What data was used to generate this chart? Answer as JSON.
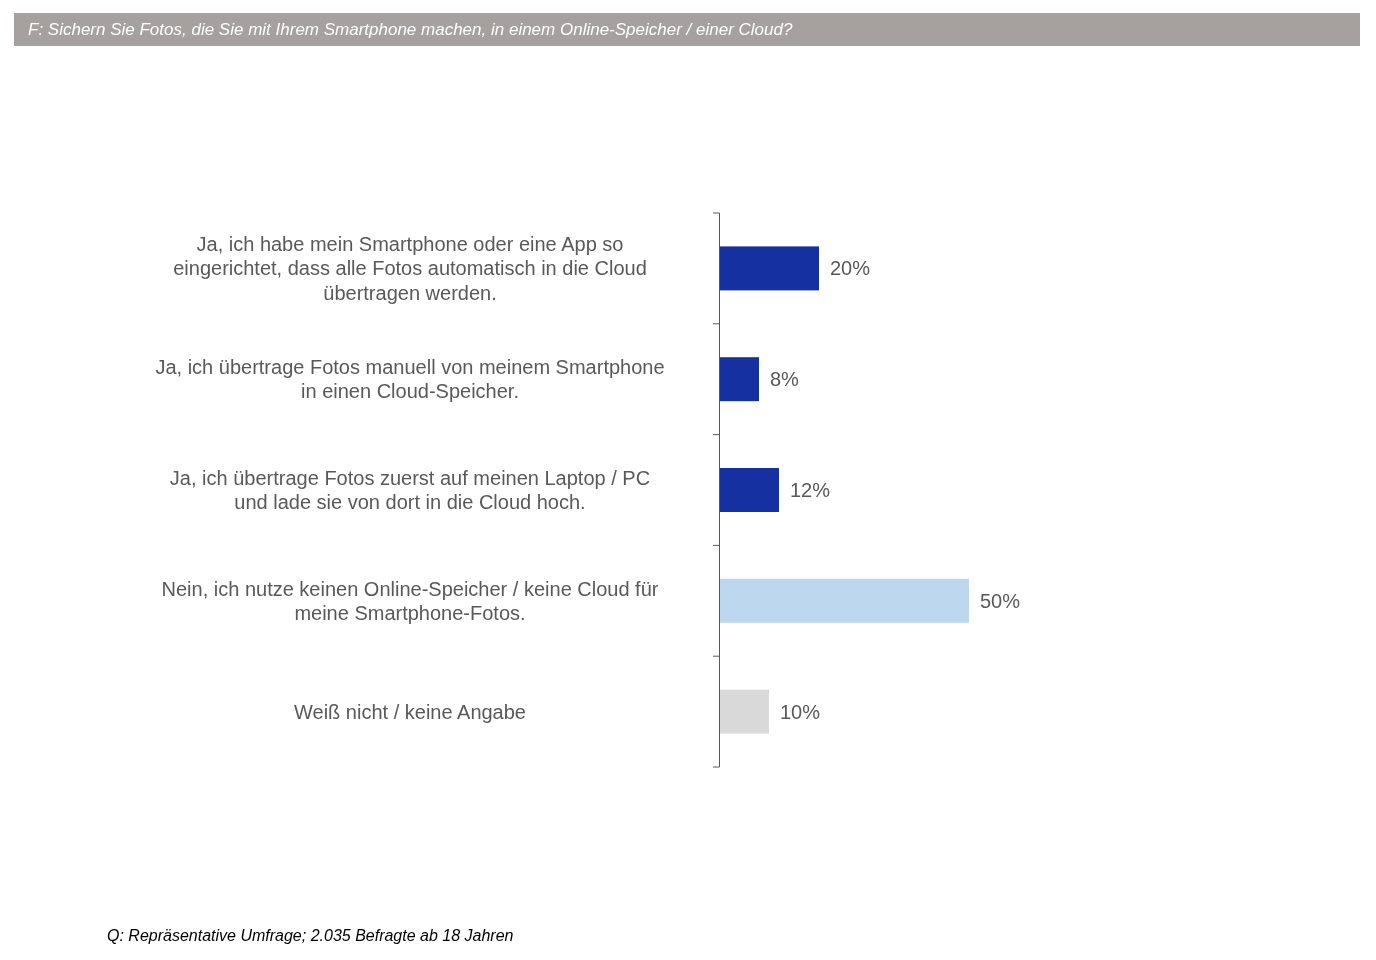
{
  "chart_data": {
    "type": "bar",
    "orientation": "horizontal",
    "title": "F: Sichern Sie Fotos, die Sie mit Ihrem Smartphone machen, in einem Online-Speicher / einer Cloud?",
    "categories": [
      "Ja, ich habe mein Smartphone oder eine App so\neingerichtet, dass alle Fotos automatisch in die Cloud\nübertragen werden.",
      "Ja, ich übertrage Fotos manuell von meinem Smartphone\nin einen Cloud-Speicher.",
      "Ja, ich übertrage Fotos zuerst auf meinen Laptop / PC\nund lade sie von dort in die Cloud hoch.",
      "Nein, ich nutze keinen Online-Speicher / keine Cloud für\nmeine Smartphone-Fotos.",
      "Weiß nicht / keine Angabe"
    ],
    "values": [
      20,
      8,
      12,
      50,
      10
    ],
    "colors": [
      "#1530a0",
      "#1530a0",
      "#1530a0",
      "#bdd7ee",
      "#d9d9d9"
    ],
    "value_labels": [
      "20%",
      "8%",
      "12%",
      "50%",
      "10%"
    ],
    "annotations": [
      "Q: Repräsentative Umfrage; 2.035 Befragte ab 18 Jahren"
    ]
  }
}
